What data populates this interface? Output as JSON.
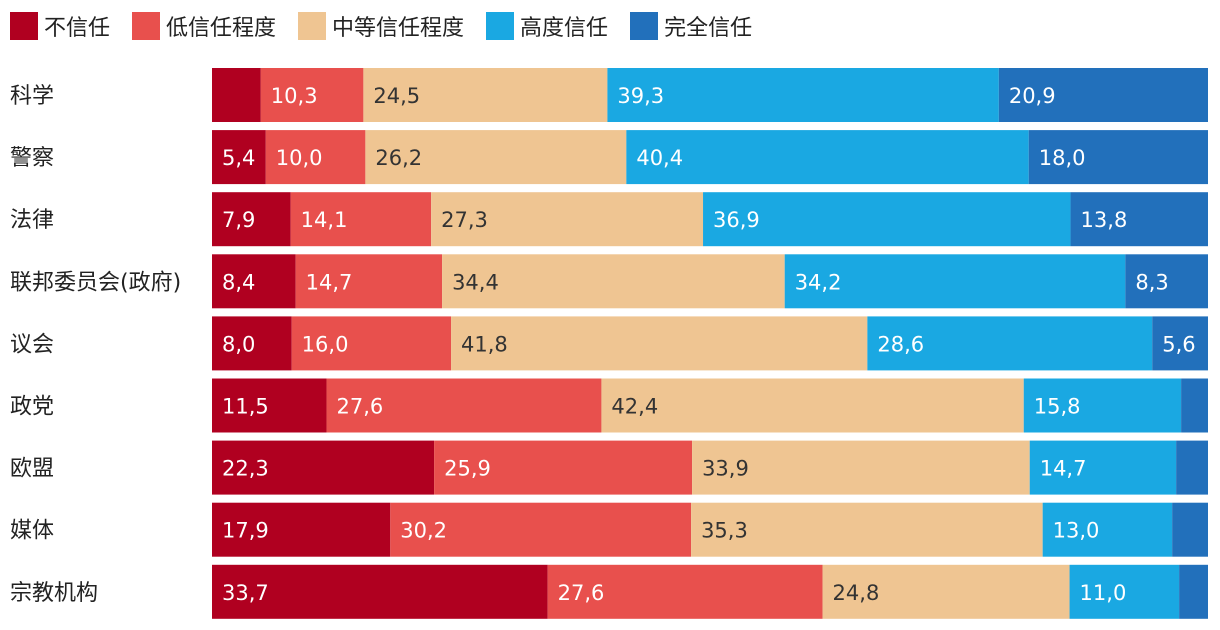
{
  "chart_data": {
    "type": "bar",
    "orientation": "horizontal",
    "stacked": true,
    "title": "",
    "xlabel": "",
    "ylabel": "",
    "xlim": [
      0,
      100
    ],
    "legend_position": "top-left",
    "categories": [
      "科学",
      "警察",
      "法律",
      "联邦委员会(政府)",
      "议会",
      "政党",
      "欧盟",
      "媒体",
      "宗教机构"
    ],
    "series": [
      {
        "name": "不信任",
        "color": "#b00020",
        "text_color": "#ffffff",
        "values": [
          4.9,
          5.4,
          7.9,
          8.4,
          8.0,
          11.5,
          22.3,
          17.9,
          33.7
        ],
        "labels": [
          "",
          "5,4",
          "7,9",
          "8,4",
          "8,0",
          "11,5",
          "22,3",
          "17,9",
          "33,7"
        ]
      },
      {
        "name": "低信任程度",
        "color": "#e8504d",
        "text_color": "#ffffff",
        "values": [
          10.3,
          10.0,
          14.1,
          14.7,
          16.0,
          27.6,
          25.9,
          30.2,
          27.6
        ],
        "labels": [
          "10,3",
          "10,0",
          "14,1",
          "14,7",
          "16,0",
          "27,6",
          "25,9",
          "30,2",
          "27,6"
        ]
      },
      {
        "name": "中等信任程度",
        "color": "#efc592",
        "text_color": "#333333",
        "values": [
          24.5,
          26.2,
          27.3,
          34.4,
          41.8,
          42.4,
          33.9,
          35.3,
          24.8
        ],
        "labels": [
          "24,5",
          "26,2",
          "27,3",
          "34,4",
          "41,8",
          "42,4",
          "33,9",
          "35,3",
          "24,8"
        ]
      },
      {
        "name": "高度信任",
        "color": "#1aa8e2",
        "text_color": "#ffffff",
        "values": [
          39.3,
          40.4,
          36.9,
          34.2,
          28.6,
          15.8,
          14.7,
          13.0,
          11.0
        ],
        "labels": [
          "39,3",
          "40,4",
          "36,9",
          "34,2",
          "28,6",
          "15,8",
          "14,7",
          "13,0",
          "11,0"
        ]
      },
      {
        "name": "完全信任",
        "color": "#2270bb",
        "text_color": "#ffffff",
        "values": [
          20.9,
          18.0,
          13.8,
          8.3,
          5.6,
          2.7,
          3.2,
          3.6,
          2.9
        ],
        "labels": [
          "20,9",
          "18,0",
          "13,8",
          "8,3",
          "5,6",
          "",
          "",
          "",
          ""
        ]
      }
    ]
  }
}
